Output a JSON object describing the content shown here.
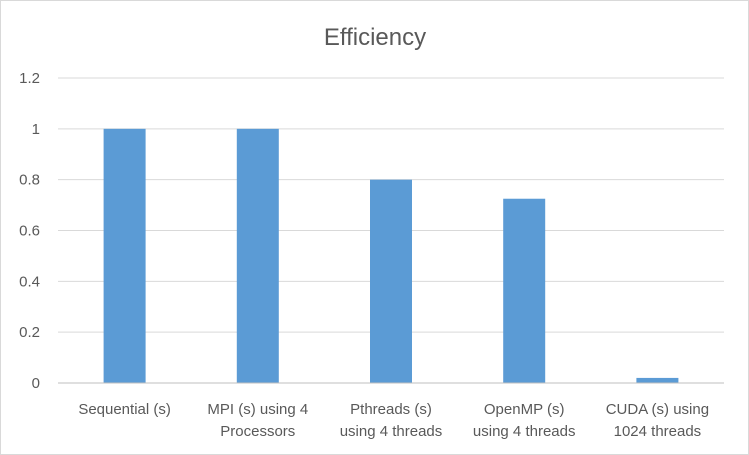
{
  "chart_data": {
    "type": "bar",
    "title": "Efficiency",
    "xlabel": "",
    "ylabel": "",
    "categories": [
      [
        "Sequential (s)"
      ],
      [
        "MPI (s) using 4",
        "Processors"
      ],
      [
        "Pthreads (s)",
        "using 4 threads"
      ],
      [
        "OpenMP (s)",
        "using 4 threads"
      ],
      [
        "CUDA (s) using",
        "1024 threads"
      ]
    ],
    "values": [
      1.0,
      1.0,
      0.8,
      0.725,
      0.02
    ],
    "ylim": [
      0,
      1.2
    ],
    "yticks": [
      "0",
      "0.2",
      "0.4",
      "0.6",
      "0.8",
      "1",
      "1.2"
    ],
    "grid": true,
    "legend": "none",
    "bar_color": "#5b9bd5"
  }
}
